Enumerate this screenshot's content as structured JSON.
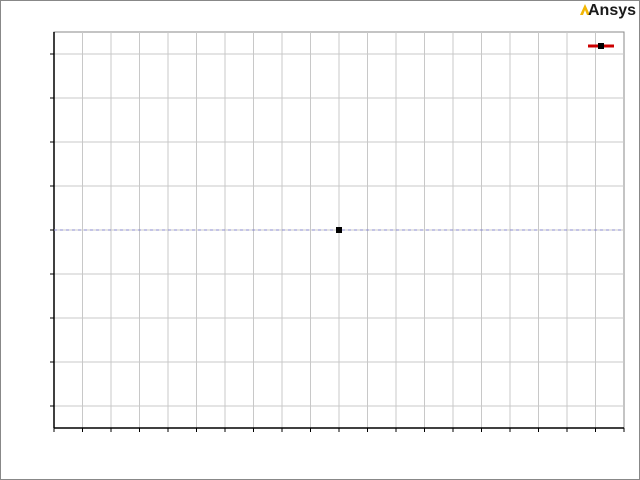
{
  "brand": {
    "name": "Ansys",
    "accent": "#f2b705"
  },
  "chart_data": {
    "type": "line",
    "title": "",
    "xlabel": "",
    "ylabel": "",
    "x_ticks": [
      "",
      "",
      "",
      "",
      "",
      "",
      "",
      "",
      "",
      "",
      "",
      "",
      "",
      "",
      "",
      "",
      "",
      "",
      "",
      "",
      ""
    ],
    "y_ticks": [
      "",
      "",
      "",
      "",
      "",
      "",
      "",
      "",
      ""
    ],
    "xlim": [
      -1,
      1
    ],
    "series": [
      {
        "name": "",
        "x": [
          0
        ],
        "y": [
          0
        ],
        "color": "#cc0000",
        "marker": "square"
      }
    ],
    "reference_line": {
      "y": 0,
      "color": "#8888cc",
      "style": "dashed"
    },
    "legend_position": "top-right",
    "grid": true
  }
}
